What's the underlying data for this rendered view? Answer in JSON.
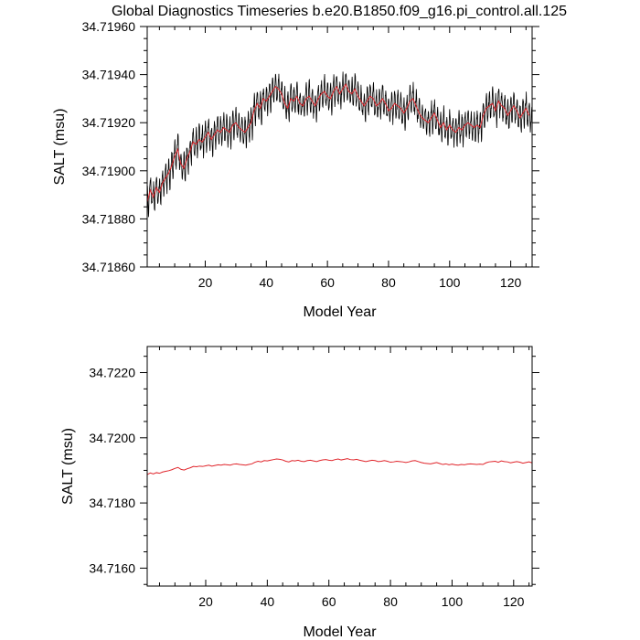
{
  "figure": {
    "title": "Global Diagnostics Timeseries b.e20.B1850.f09_g16.pi_control.all.125"
  },
  "chart_data": [
    {
      "type": "line",
      "xlabel": "Model Year",
      "ylabel": "SALT (msu)",
      "xlim": [
        1,
        127
      ],
      "ylim": [
        34.7186,
        34.7196
      ],
      "x_ticks": [
        20,
        40,
        60,
        80,
        100,
        120
      ],
      "x_tick_labels": [
        "20",
        "40",
        "60",
        "80",
        "100",
        "120"
      ],
      "y_ticks": [
        34.7186,
        34.7188,
        34.719,
        34.7192,
        34.7194,
        34.7196
      ],
      "y_tick_labels": [
        "34.71860",
        "34.71880",
        "34.71900",
        "34.71920",
        "34.71940",
        "34.71960"
      ],
      "grid": false,
      "series": [
        {
          "style": "monthly",
          "color": "#000000",
          "x_start": 1,
          "x_step": 0.0833333,
          "amplitude": 0.0001,
          "mean_ref": "annual"
        },
        {
          "style": "annual",
          "color": "#e0242a",
          "x": [
            1,
            2,
            3,
            4,
            5,
            6,
            7,
            8,
            9,
            10,
            11,
            12,
            13,
            14,
            15,
            16,
            17,
            18,
            19,
            20,
            21,
            22,
            23,
            24,
            25,
            26,
            27,
            28,
            29,
            30,
            31,
            32,
            33,
            34,
            35,
            36,
            37,
            38,
            39,
            40,
            41,
            42,
            43,
            44,
            45,
            46,
            47,
            48,
            49,
            50,
            51,
            52,
            53,
            54,
            55,
            56,
            57,
            58,
            59,
            60,
            61,
            62,
            63,
            64,
            65,
            66,
            67,
            68,
            69,
            70,
            71,
            72,
            73,
            74,
            75,
            76,
            77,
            78,
            79,
            80,
            81,
            82,
            83,
            84,
            85,
            86,
            87,
            88,
            89,
            90,
            91,
            92,
            93,
            94,
            95,
            96,
            97,
            98,
            99,
            100,
            101,
            102,
            103,
            104,
            105,
            106,
            107,
            108,
            109,
            110,
            111,
            112,
            113,
            114,
            115,
            116,
            117,
            118,
            119,
            120,
            121,
            122,
            123,
            124,
            125,
            126
          ],
          "values": [
            34.71887,
            34.71892,
            34.71889,
            34.71893,
            34.71891,
            34.71895,
            34.71897,
            34.71899,
            34.71902,
            34.71906,
            34.71909,
            34.71903,
            34.71901,
            34.71905,
            34.71908,
            34.71912,
            34.71911,
            34.71913,
            34.71912,
            34.71914,
            34.71916,
            34.71913,
            34.71915,
            34.71917,
            34.71916,
            34.71918,
            34.71917,
            34.71916,
            34.71919,
            34.7192,
            34.71918,
            34.71917,
            34.71916,
            34.71918,
            34.7192,
            34.71925,
            34.71928,
            34.71926,
            34.7193,
            34.71929,
            34.71931,
            34.71933,
            34.71935,
            34.71934,
            34.71932,
            34.71928,
            34.71926,
            34.7193,
            34.71929,
            34.71931,
            34.71928,
            34.71927,
            34.7193,
            34.71931,
            34.71929,
            34.71927,
            34.7193,
            34.71932,
            34.71933,
            34.71931,
            34.7193,
            34.71933,
            34.71935,
            34.71932,
            34.71934,
            34.71936,
            34.71933,
            34.71932,
            34.71934,
            34.71931,
            34.71929,
            34.71927,
            34.71929,
            34.71931,
            34.7193,
            34.71927,
            34.71928,
            34.7193,
            34.71928,
            34.71925,
            34.71926,
            34.71928,
            34.71927,
            34.71926,
            34.71924,
            34.71926,
            34.71929,
            34.7193,
            34.71927,
            34.71924,
            34.71922,
            34.71921,
            34.7192,
            34.71922,
            34.71924,
            34.71921,
            34.71918,
            34.7192,
            34.71917,
            34.71919,
            34.71917,
            34.71916,
            34.71918,
            34.71917,
            34.71919,
            34.7192,
            34.71919,
            34.71918,
            34.71919,
            34.71918,
            34.71923,
            34.71926,
            34.71927,
            34.71928,
            34.71925,
            34.71929,
            34.71927,
            34.71926,
            34.71923,
            34.71925,
            34.71927,
            34.71925,
            34.71922,
            34.71924,
            34.71926,
            34.71923
          ]
        }
      ]
    },
    {
      "type": "line",
      "xlabel": "Model Year",
      "ylabel": "SALT (msu)",
      "xlim": [
        1,
        126
      ],
      "ylim": [
        34.71545,
        34.7228
      ],
      "x_ticks": [
        20,
        40,
        60,
        80,
        100,
        120
      ],
      "x_tick_labels": [
        "20",
        "40",
        "60",
        "80",
        "100",
        "120"
      ],
      "y_ticks": [
        34.716,
        34.718,
        34.72,
        34.722
      ],
      "y_tick_labels": [
        "34.7160",
        "34.7180",
        "34.7200",
        "34.7220"
      ],
      "grid": false,
      "series": [
        {
          "style": "annual",
          "color": "#e0242a",
          "x": [
            1,
            2,
            3,
            4,
            5,
            6,
            7,
            8,
            9,
            10,
            11,
            12,
            13,
            14,
            15,
            16,
            17,
            18,
            19,
            20,
            21,
            22,
            23,
            24,
            25,
            26,
            27,
            28,
            29,
            30,
            31,
            32,
            33,
            34,
            35,
            36,
            37,
            38,
            39,
            40,
            41,
            42,
            43,
            44,
            45,
            46,
            47,
            48,
            49,
            50,
            51,
            52,
            53,
            54,
            55,
            56,
            57,
            58,
            59,
            60,
            61,
            62,
            63,
            64,
            65,
            66,
            67,
            68,
            69,
            70,
            71,
            72,
            73,
            74,
            75,
            76,
            77,
            78,
            79,
            80,
            81,
            82,
            83,
            84,
            85,
            86,
            87,
            88,
            89,
            90,
            91,
            92,
            93,
            94,
            95,
            96,
            97,
            98,
            99,
            100,
            101,
            102,
            103,
            104,
            105,
            106,
            107,
            108,
            109,
            110,
            111,
            112,
            113,
            114,
            115,
            116,
            117,
            118,
            119,
            120,
            121,
            122,
            123,
            124,
            125,
            126
          ],
          "values": [
            34.71887,
            34.71892,
            34.71889,
            34.71893,
            34.71891,
            34.71895,
            34.71897,
            34.71899,
            34.71902,
            34.71906,
            34.71909,
            34.71903,
            34.71901,
            34.71905,
            34.71908,
            34.71912,
            34.71911,
            34.71913,
            34.71912,
            34.71914,
            34.71916,
            34.71913,
            34.71915,
            34.71917,
            34.71916,
            34.71918,
            34.71917,
            34.71916,
            34.71919,
            34.7192,
            34.71918,
            34.71917,
            34.71916,
            34.71918,
            34.7192,
            34.71925,
            34.71928,
            34.71926,
            34.7193,
            34.71929,
            34.71931,
            34.71933,
            34.71935,
            34.71934,
            34.71932,
            34.71928,
            34.71926,
            34.7193,
            34.71929,
            34.71931,
            34.71928,
            34.71927,
            34.7193,
            34.71931,
            34.71929,
            34.71927,
            34.7193,
            34.71932,
            34.71933,
            34.71931,
            34.7193,
            34.71933,
            34.71935,
            34.71932,
            34.71934,
            34.71936,
            34.71933,
            34.71932,
            34.71934,
            34.71931,
            34.71929,
            34.71927,
            34.71929,
            34.71931,
            34.7193,
            34.71927,
            34.71928,
            34.7193,
            34.71928,
            34.71925,
            34.71926,
            34.71928,
            34.71927,
            34.71926,
            34.71924,
            34.71926,
            34.71929,
            34.7193,
            34.71927,
            34.71924,
            34.71922,
            34.71921,
            34.7192,
            34.71922,
            34.71924,
            34.71921,
            34.71918,
            34.7192,
            34.71917,
            34.71919,
            34.71917,
            34.71916,
            34.71918,
            34.71917,
            34.71919,
            34.7192,
            34.71919,
            34.71918,
            34.71919,
            34.71918,
            34.71923,
            34.71926,
            34.71927,
            34.71928,
            34.71925,
            34.71929,
            34.71927,
            34.71926,
            34.71923,
            34.71925,
            34.71927,
            34.71925,
            34.71922,
            34.71924,
            34.71926,
            34.71923
          ]
        }
      ]
    }
  ]
}
